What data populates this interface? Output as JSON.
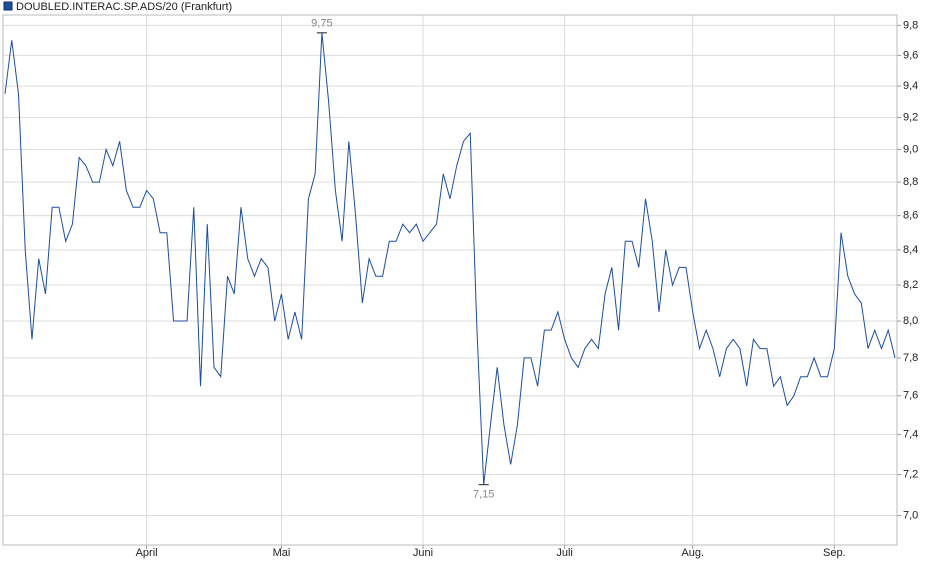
{
  "chart_data": {
    "type": "line",
    "log_scale": true,
    "grid": true,
    "categories": [
      null,
      null,
      null,
      null,
      null,
      null,
      null,
      null,
      null,
      null,
      null,
      null,
      null,
      null,
      null,
      null,
      null,
      null,
      null,
      null,
      null,
      "April",
      null,
      null,
      null,
      null,
      null,
      null,
      null,
      null,
      null,
      null,
      null,
      null,
      null,
      null,
      null,
      null,
      null,
      null,
      null,
      "Mai",
      null,
      null,
      null,
      null,
      null,
      null,
      null,
      null,
      null,
      null,
      null,
      null,
      null,
      null,
      null,
      null,
      null,
      null,
      null,
      null,
      "Juni",
      null,
      null,
      null,
      null,
      null,
      null,
      null,
      null,
      null,
      null,
      null,
      null,
      null,
      null,
      null,
      null,
      null,
      null,
      null,
      null,
      "Juli",
      null,
      null,
      null,
      null,
      null,
      null,
      null,
      null,
      null,
      null,
      null,
      null,
      null,
      null,
      null,
      null,
      null,
      null,
      "Aug.",
      null,
      null,
      null,
      null,
      null,
      null,
      null,
      null,
      null,
      null,
      null,
      null,
      null,
      null,
      null,
      null,
      null,
      null,
      null,
      null,
      "Sep.",
      null,
      null,
      null,
      null,
      null,
      null,
      null,
      null,
      null
    ],
    "series": [
      {
        "name": "DOUBLED.INTERAC.SP.ADS/20 (Frankfurt)",
        "color": "#1c4f9c",
        "values": [
          9.35,
          9.7,
          9.35,
          8.4,
          7.9,
          8.35,
          8.15,
          8.65,
          8.65,
          8.45,
          8.55,
          8.95,
          8.9,
          8.8,
          8.8,
          9.0,
          8.9,
          9.05,
          8.75,
          8.65,
          8.65,
          8.75,
          8.7,
          8.5,
          8.5,
          8.0,
          8.0,
          8.0,
          8.65,
          7.65,
          8.55,
          7.75,
          7.7,
          8.25,
          8.15,
          8.65,
          8.35,
          8.25,
          8.35,
          8.3,
          8.0,
          8.15,
          7.9,
          8.05,
          7.9,
          8.7,
          8.85,
          9.75,
          9.3,
          8.75,
          8.45,
          9.05,
          8.6,
          8.1,
          8.35,
          8.25,
          8.25,
          8.45,
          8.45,
          8.55,
          8.5,
          8.55,
          8.45,
          8.5,
          8.55,
          8.85,
          8.7,
          8.9,
          9.05,
          9.1,
          7.95,
          7.15,
          7.45,
          7.75,
          7.45,
          7.25,
          7.45,
          7.8,
          7.8,
          7.65,
          7.95,
          7.95,
          8.05,
          7.9,
          7.8,
          7.75,
          7.85,
          7.9,
          7.85,
          8.15,
          8.3,
          7.95,
          8.45,
          8.45,
          8.3,
          8.7,
          8.45,
          8.05,
          8.4,
          8.2,
          8.3,
          8.3,
          8.05,
          7.85,
          7.95,
          7.85,
          7.7,
          7.85,
          7.9,
          7.85,
          7.65,
          7.9,
          7.85,
          7.85,
          7.65,
          7.7,
          7.55,
          7.6,
          7.7,
          7.7,
          7.8,
          7.7,
          7.7,
          7.85,
          8.5,
          8.25,
          8.15,
          8.1,
          7.85,
          7.95,
          7.85,
          7.95,
          7.8
        ],
        "value_labels": [
          null,
          null,
          null,
          null,
          null,
          null,
          null,
          null,
          null,
          null,
          null,
          null,
          null,
          null,
          null,
          null,
          null,
          null,
          null,
          null,
          null,
          null,
          null,
          null,
          null,
          null,
          null,
          null,
          null,
          null,
          null,
          null,
          null,
          null,
          null,
          null,
          null,
          null,
          null,
          null,
          null,
          null,
          null,
          null,
          null,
          null,
          null,
          "9,75",
          null,
          null,
          null,
          null,
          null,
          null,
          null,
          null,
          null,
          null,
          null,
          null,
          null,
          null,
          null,
          null,
          null,
          null,
          null,
          null,
          null,
          null,
          null,
          "7,15",
          null,
          null,
          null,
          null,
          null,
          null,
          null,
          null,
          null,
          null,
          null,
          null,
          null,
          null,
          null,
          null,
          null,
          null,
          null,
          null,
          null,
          null,
          null,
          null,
          null,
          null,
          null,
          null,
          null,
          null,
          null,
          null,
          null,
          null,
          null,
          null,
          null,
          null,
          null,
          null,
          null,
          null,
          null,
          null,
          null,
          null,
          null,
          null,
          null,
          null,
          null,
          null,
          null,
          null,
          null,
          null,
          null,
          null,
          null,
          null,
          null
        ]
      }
    ],
    "ylim": [
      6.86,
      9.87
    ],
    "yticks": [
      {
        "value": 7.0,
        "label": "7,0"
      },
      {
        "value": 7.2,
        "label": "7,2"
      },
      {
        "value": 7.4,
        "label": "7,4"
      },
      {
        "value": 7.6,
        "label": "7,6"
      },
      {
        "value": 7.8,
        "label": "7,8"
      },
      {
        "value": 8.0,
        "label": "8,0"
      },
      {
        "value": 8.2,
        "label": "8,2"
      },
      {
        "value": 8.4,
        "label": "8,4"
      },
      {
        "value": 8.6,
        "label": "8,6"
      },
      {
        "value": 8.8,
        "label": "8,8"
      },
      {
        "value": 9.0,
        "label": "9,0"
      },
      {
        "value": 9.2,
        "label": "9,2"
      },
      {
        "value": 9.4,
        "label": "9,4"
      },
      {
        "value": 9.6,
        "label": "9,6"
      },
      {
        "value": 9.8,
        "label": "9,8"
      }
    ]
  }
}
